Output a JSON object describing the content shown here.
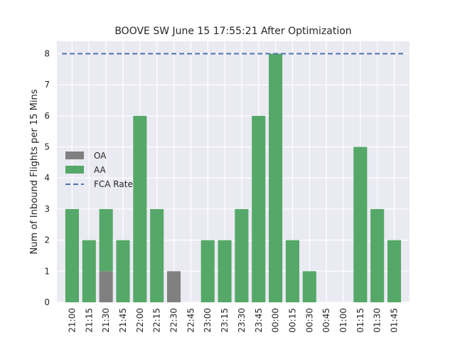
{
  "chart_data": {
    "type": "bar",
    "title": "BOOVE SW June 15 17:55:21 After Optimization",
    "xlabel": "",
    "ylabel": "Num of Inbound Flights per 15 Mins",
    "categories": [
      "21:00",
      "21:15",
      "21:30",
      "21:45",
      "22:00",
      "22:15",
      "22:30",
      "22:45",
      "23:00",
      "23:15",
      "23:30",
      "23:45",
      "00:00",
      "00:15",
      "00:30",
      "00:45",
      "01:00",
      "01:15",
      "01:30",
      "01:45"
    ],
    "series": [
      {
        "name": "OA",
        "color": "#808080",
        "values": [
          0,
          0,
          1,
          0,
          0,
          0,
          1,
          0,
          0,
          0,
          0,
          0,
          0,
          0,
          0,
          0,
          0,
          0,
          0,
          0
        ]
      },
      {
        "name": "AA",
        "color": "#55a868",
        "values": [
          3,
          2,
          2,
          2,
          6,
          3,
          0,
          0,
          2,
          2,
          3,
          6,
          8,
          2,
          1,
          0,
          0,
          5,
          3,
          2
        ]
      }
    ],
    "stacked": true,
    "reference_line": {
      "name": "FCA Rate",
      "value": 8,
      "color": "#4c72b0",
      "style": "dashed"
    },
    "ylim": [
      0,
      8.4
    ],
    "yticks": [
      0,
      1,
      2,
      3,
      4,
      5,
      6,
      7,
      8
    ],
    "grid": true,
    "legend_placement": "center-left",
    "background": "#eaeaf2"
  }
}
